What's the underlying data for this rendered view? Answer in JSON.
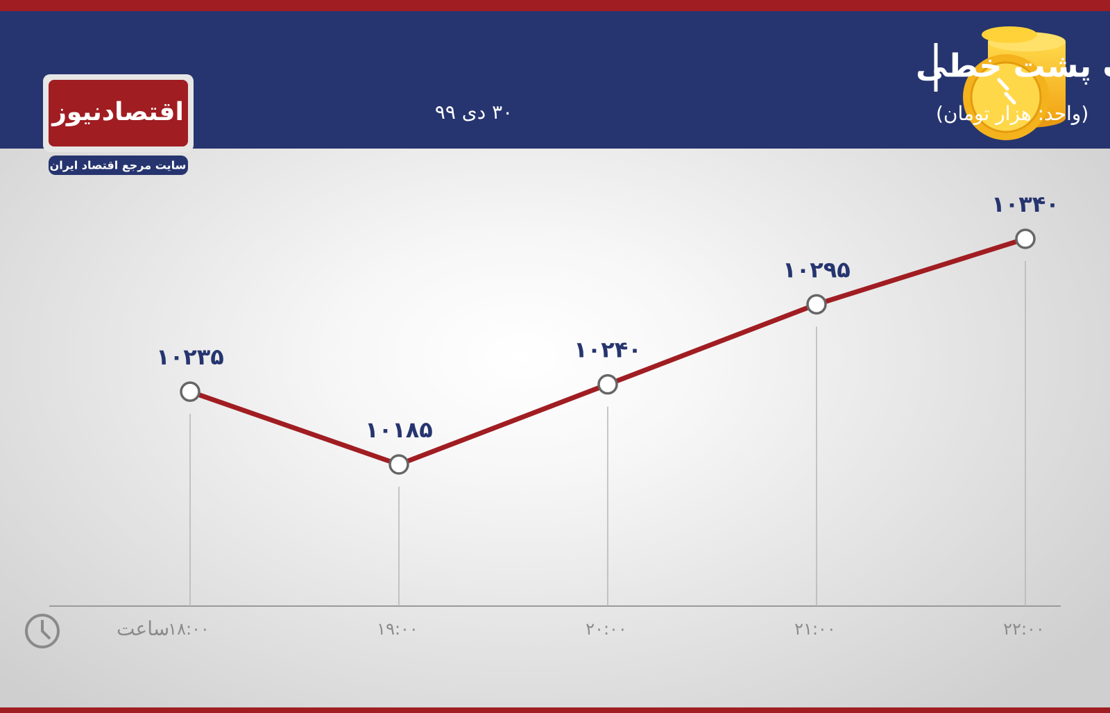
{
  "header": {
    "title": "رفتار سکه در معاملات پشت خطی",
    "unit": "(واحد: هزار تومان)",
    "date": "۳۰ دی ۹۹"
  },
  "logo": {
    "name": "اقتصادنیوز",
    "tagline": "سایت مرجع اقتصاد ایران"
  },
  "chart_data": {
    "type": "line",
    "x_label": "ساعت",
    "categories": [
      "۱۸:۰۰",
      "۱۹:۰۰",
      "۲۰:۰۰",
      "۲۱:۰۰",
      "۲۲:۰۰"
    ],
    "values": [
      10235,
      10185,
      10240,
      10295,
      10340
    ],
    "value_labels": [
      "۱۰۲۳۵",
      "۱۰۱۸۵",
      "۱۰۲۴۰",
      "۱۰۲۹۵",
      "۱۰۳۴۰"
    ],
    "color": "#a01d22"
  }
}
